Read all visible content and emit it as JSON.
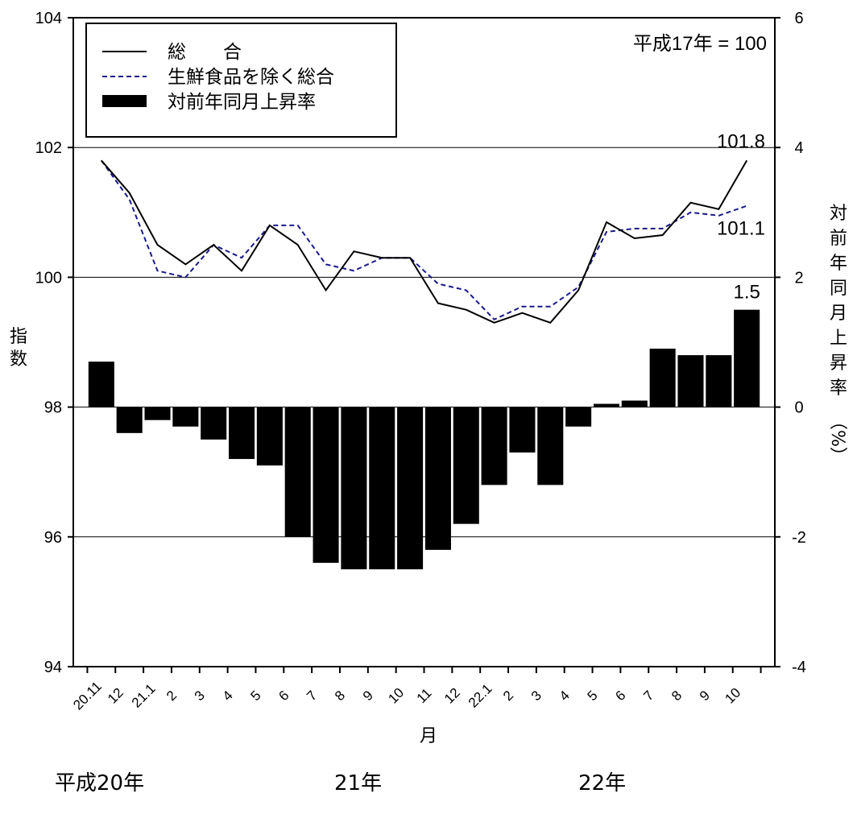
{
  "chart_data": {
    "type": "bar",
    "unit_note": "平成17年 = 100",
    "xlabel": "月",
    "ylabel_left": "指数",
    "ylabel_right": [
      "対",
      "前",
      "年",
      "同",
      "月",
      "上",
      "昇",
      "率",
      "（%）"
    ],
    "left_axis": {
      "min": 94,
      "max": 104,
      "ticks": [
        94,
        96,
        98,
        100,
        102,
        104
      ]
    },
    "right_axis": {
      "min": -4,
      "max": 6,
      "ticks": [
        "-4",
        "-2",
        "0",
        "2",
        "4",
        "6"
      ]
    },
    "grid": true,
    "legend": {
      "position": "top-left",
      "entries": [
        "総　　合",
        "生鮮食品を除く総合",
        "対前年同月上昇率"
      ]
    },
    "categories": [
      "20.11",
      "12",
      "21.1",
      "2",
      "3",
      "4",
      "5",
      "6",
      "7",
      "8",
      "9",
      "10",
      "11",
      "12",
      "22.1",
      "2",
      "3",
      "4",
      "5",
      "6",
      "7",
      "8",
      "9",
      "10"
    ],
    "year_labels": [
      "平成20年",
      "21年",
      "22年"
    ],
    "series": [
      {
        "name": "総　　合",
        "axis": "left",
        "style": "solid",
        "color": "#000000",
        "values": [
          101.8,
          101.3,
          100.5,
          100.2,
          100.5,
          100.1,
          100.8,
          100.5,
          99.8,
          100.4,
          100.3,
          100.3,
          99.6,
          99.5,
          99.3,
          99.45,
          99.3,
          99.8,
          100.85,
          100.6,
          100.65,
          101.15,
          101.05,
          101.8
        ]
      },
      {
        "name": "生鮮食品を除く総合",
        "axis": "left",
        "style": "dashed",
        "color": "#1a1a8c",
        "values": [
          101.8,
          101.2,
          100.1,
          100.0,
          100.5,
          100.3,
          100.8,
          100.8,
          100.2,
          100.1,
          100.3,
          100.3,
          99.9,
          99.8,
          99.35,
          99.55,
          99.55,
          99.85,
          100.7,
          100.75,
          100.75,
          101.0,
          100.95,
          101.1
        ]
      },
      {
        "name": "対前年同月上昇率",
        "axis": "right",
        "style": "bar",
        "color": "#000000",
        "values": [
          0.7,
          -0.4,
          -0.2,
          -0.3,
          -0.5,
          -0.8,
          -0.9,
          -2.0,
          -2.4,
          -2.5,
          -2.5,
          -2.5,
          -2.2,
          -1.8,
          -1.2,
          -0.7,
          -1.2,
          -0.3,
          0.05,
          0.1,
          0.9,
          0.8,
          0.8,
          1.5
        ]
      }
    ],
    "annotations": [
      {
        "text": "101.8",
        "series": 0,
        "index": 23
      },
      {
        "text": "101.1",
        "series": 1,
        "index": 23
      },
      {
        "text": "1.5",
        "series": 2,
        "index": 23
      }
    ]
  }
}
